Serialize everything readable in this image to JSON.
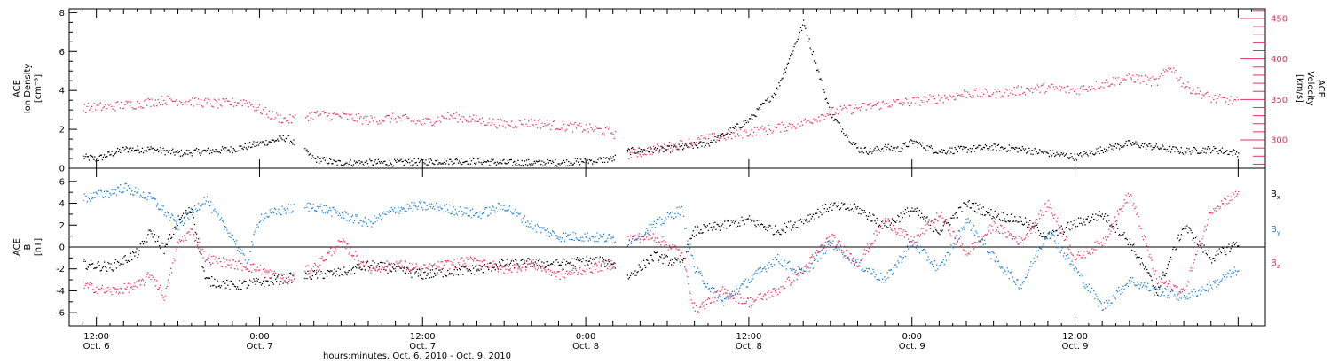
{
  "colors": {
    "black": "#000000",
    "pink": "#e8305f",
    "blue": "#1a7fd8"
  },
  "chart_data": [
    {
      "type": "scatter",
      "panel": "top",
      "ylabel_left": [
        "ACE",
        "Ion Density",
        "[cm⁻³]"
      ],
      "ylabel_right": [
        "ACE",
        "Velocity",
        "[km/s]"
      ],
      "y_left_ticks": [
        "0",
        "2",
        "4",
        "6",
        "8"
      ],
      "y_left_range": [
        0,
        8.2
      ],
      "y_right_ticks": [
        "300",
        "350",
        "400",
        "450"
      ],
      "y_right_range": [
        265,
        462
      ],
      "x_hours_range": [
        -2,
        86
      ],
      "data_gaps_hours": [
        [
          -2,
          -1
        ],
        [
          14.6,
          15.3
        ],
        [
          38.2,
          39.0
        ]
      ],
      "series": [
        {
          "name": "",
          "color": "black",
          "axis": "left",
          "x": [
            -1,
            0,
            2,
            4,
            6,
            8,
            10,
            12,
            14,
            16,
            17,
            17.5,
            19,
            22,
            25.5,
            28,
            30,
            34,
            38,
            39,
            42,
            45,
            48,
            50,
            52,
            54,
            56,
            57,
            58,
            59,
            59.5,
            60,
            61,
            62,
            64,
            66,
            68,
            70,
            72,
            74,
            76,
            78,
            80,
            82,
            84
          ],
          "y": [
            0.6,
            0.5,
            1.0,
            1.0,
            0.8,
            0.9,
            1.0,
            1.3,
            1.6,
            0.5,
            0.4,
            0.3,
            0.3,
            0.3,
            0.4,
            0.4,
            0.3,
            0.3,
            0.5,
            0.9,
            1.0,
            1.3,
            2.5,
            4.0,
            7.5,
            2.8,
            1.0,
            0.9,
            1.1,
            1.0,
            1.2,
            1.4,
            1.1,
            0.9,
            1.0,
            1.1,
            1.0,
            0.8,
            0.6,
            1.0,
            1.3,
            1.1,
            0.9,
            1.0,
            0.8
          ]
        },
        {
          "name": "",
          "color": "pink",
          "axis": "right",
          "x": [
            -1,
            1,
            3,
            5,
            7,
            9,
            11,
            12,
            13,
            14,
            16,
            18,
            20,
            22,
            24,
            26,
            28,
            30,
            32,
            34,
            36,
            38,
            39,
            42,
            45,
            48,
            50,
            52,
            54,
            56,
            58,
            60,
            62,
            64,
            66,
            68,
            70,
            72,
            74,
            76,
            78,
            79,
            80,
            82,
            84
          ],
          "y": [
            340,
            342,
            345,
            350,
            348,
            345,
            348,
            338,
            330,
            325,
            332,
            330,
            325,
            328,
            322,
            330,
            325,
            320,
            322,
            318,
            315,
            310,
            282,
            292,
            302,
            310,
            315,
            322,
            335,
            340,
            345,
            348,
            352,
            358,
            358,
            362,
            365,
            362,
            370,
            378,
            372,
            392,
            368,
            352,
            348
          ]
        }
      ]
    },
    {
      "type": "scatter",
      "panel": "bottom",
      "ylabel": [
        "ACE",
        "B",
        "[nT]"
      ],
      "y_ticks": [
        "-6",
        "-4",
        "-2",
        "0",
        "2",
        "4",
        "6"
      ],
      "y_range": [
        -7.2,
        7.2
      ],
      "x_hours_range": [
        -2,
        86
      ],
      "series": [
        {
          "name": "Bx",
          "color": "black",
          "x": [
            -1,
            1,
            3,
            4,
            5,
            6,
            7,
            8,
            10,
            12,
            14,
            16,
            18,
            20,
            22,
            24,
            26,
            28,
            30,
            32,
            34,
            36,
            38,
            39,
            41,
            43,
            44,
            46,
            48,
            50,
            52,
            54,
            56,
            58,
            60,
            62,
            64,
            66,
            68,
            70,
            72,
            74,
            76,
            78,
            80,
            82,
            84
          ],
          "y": [
            -1.5,
            -1.8,
            -0.5,
            1.5,
            -0.2,
            2.5,
            3.5,
            -3.0,
            -3.5,
            -3.2,
            -2.8,
            -2.5,
            -2.3,
            -1.6,
            -2.0,
            -2.5,
            -2.2,
            -2.0,
            -1.5,
            -1.4,
            -1.5,
            -1.2,
            -1.4,
            -2.8,
            -0.8,
            -1.5,
            1.5,
            2.0,
            2.5,
            1.5,
            2.5,
            3.8,
            3.5,
            2.0,
            3.5,
            1.5,
            4.0,
            3.0,
            2.5,
            1.0,
            2.2,
            3.0,
            0.5,
            -4.0,
            2.0,
            -1.0,
            0.5
          ]
        },
        {
          "name": "By",
          "color": "blue",
          "x": [
            -1,
            1,
            2,
            4,
            6,
            8,
            9,
            10,
            11,
            12,
            14,
            16,
            18,
            20,
            22,
            24,
            26,
            28,
            30,
            32,
            34,
            36,
            38,
            39,
            41,
            43,
            44,
            46,
            48,
            50,
            52,
            54,
            56,
            58,
            60,
            62,
            64,
            66,
            68,
            70,
            72,
            74,
            76,
            78,
            80,
            82,
            84
          ],
          "y": [
            4.5,
            5.0,
            5.5,
            4.5,
            2.0,
            4.5,
            2.5,
            1.0,
            -1.5,
            2.8,
            3.5,
            3.8,
            3.0,
            2.2,
            3.5,
            3.8,
            3.5,
            3.0,
            3.8,
            2.0,
            1.0,
            1.0,
            0.8,
            0.5,
            2.0,
            3.5,
            -2.0,
            -5.0,
            -3.0,
            -1.0,
            -2.5,
            0.5,
            -1.5,
            -3.0,
            0.5,
            -2.0,
            2.5,
            -1.0,
            -3.5,
            1.5,
            -2.0,
            -5.5,
            -3.0,
            -4.0,
            -4.5,
            -3.5,
            -2.0
          ]
        },
        {
          "name": "Bz",
          "color": "pink",
          "x": [
            -1,
            1,
            3,
            4,
            5,
            6,
            7,
            8,
            10,
            12,
            14,
            16,
            18,
            20,
            22,
            24,
            26,
            28,
            30,
            32,
            34,
            36,
            38,
            39,
            41,
            43,
            44,
            46,
            48,
            50,
            52,
            54,
            56,
            58,
            60,
            62,
            64,
            66,
            68,
            70,
            72,
            74,
            76,
            78,
            80,
            82,
            84
          ],
          "y": [
            -3.5,
            -4.0,
            -3.5,
            -2.5,
            -4.5,
            0.5,
            1.5,
            -1.0,
            -1.5,
            -2.0,
            -3.0,
            -1.8,
            0.5,
            -2.0,
            -1.5,
            -2.0,
            -1.5,
            -1.2,
            -2.0,
            -1.5,
            -2.5,
            -2.0,
            -1.5,
            0.8,
            1.0,
            -0.5,
            -5.8,
            -4.0,
            -5.0,
            -4.0,
            -2.0,
            1.0,
            -1.5,
            2.5,
            0.5,
            3.0,
            -0.5,
            2.0,
            0.5,
            4.0,
            -1.0,
            0.5,
            5.0,
            -3.0,
            -4.0,
            3.5,
            5.0
          ]
        }
      ],
      "legend": [
        {
          "main": "B",
          "sub": "x",
          "color": "black"
        },
        {
          "main": "B",
          "sub": "y",
          "color": "blue"
        },
        {
          "main": "B",
          "sub": "z",
          "color": "pink"
        }
      ]
    }
  ],
  "x_axis": {
    "major_ticks": [
      {
        "hours": 0,
        "time": "12:00",
        "date": "Oct. 6"
      },
      {
        "hours": 12,
        "time": "0:00",
        "date": "Oct. 7"
      },
      {
        "hours": 24,
        "time": "12:00",
        "date": "Oct. 7"
      },
      {
        "hours": 36,
        "time": "0:00",
        "date": "Oct. 8"
      },
      {
        "hours": 48,
        "time": "12:00",
        "date": "Oct. 8"
      },
      {
        "hours": 60,
        "time": "0:00",
        "date": "Oct. 9"
      },
      {
        "hours": 72,
        "time": "12:00",
        "date": "Oct. 9"
      }
    ],
    "label": "hours:minutes, Oct.  6, 2010 - Oct.  9, 2010"
  }
}
